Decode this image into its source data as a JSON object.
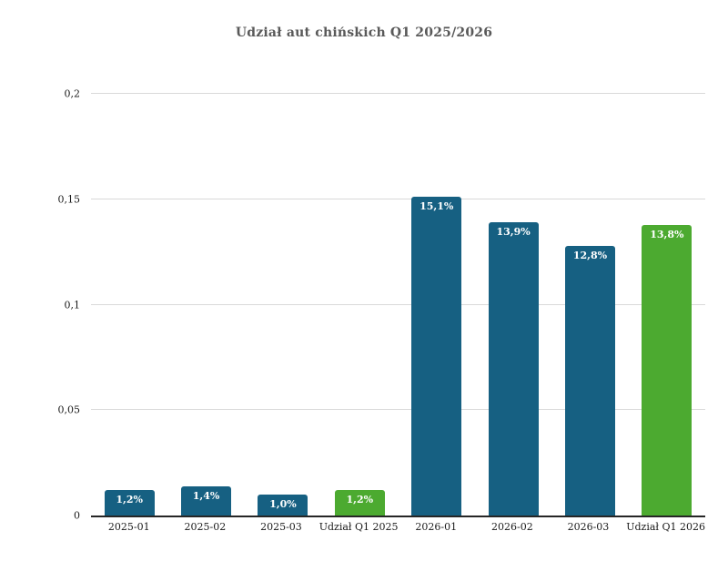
{
  "chart_data": {
    "type": "bar",
    "title": "Udział aut chińskich Q1 2025/2026",
    "categories": [
      "2025-01",
      "2025-02",
      "2025-03",
      "Udział Q1 2025",
      "2026-01",
      "2026-02",
      "2026-03",
      "Udział Q1 2026"
    ],
    "values": [
      0.012,
      0.014,
      0.01,
      0.012,
      0.151,
      0.139,
      0.128,
      0.138
    ],
    "value_labels": [
      "1,2%",
      "1,4%",
      "1,0%",
      "1,2%",
      "15,1%",
      "13,9%",
      "12,8%",
      "13,8%"
    ],
    "bar_colors": [
      "#166082",
      "#166082",
      "#166082",
      "#4caa30",
      "#166082",
      "#166082",
      "#166082",
      "#4caa30"
    ],
    "y_tick_labels": [
      "0",
      "0,05",
      "0,1",
      "0,15",
      "0,2"
    ],
    "y_tick_values": [
      0,
      0.05,
      0.1,
      0.15,
      0.2
    ],
    "ylim": [
      0,
      0.2
    ],
    "grid": true,
    "legend_position": "none",
    "xlabel": "",
    "ylabel": ""
  },
  "colors": {
    "bar_blue": "#166082",
    "bar_green": "#4caa30",
    "gridline": "#d9d9d9",
    "axis_line": "#262626",
    "title_text": "#595959",
    "tick_text": "#1a1a1a",
    "value_label_text": "#ffffff",
    "background": "#ffffff"
  }
}
